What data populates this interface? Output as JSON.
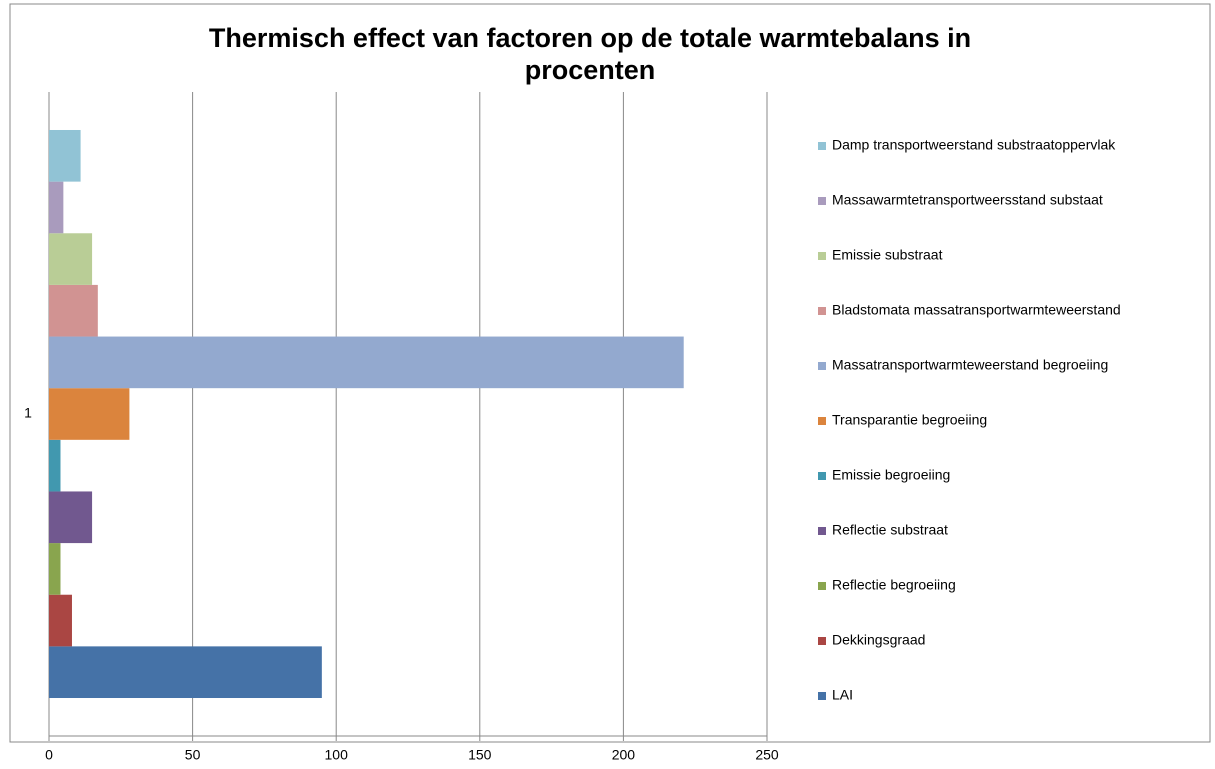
{
  "chart_data": {
    "type": "barh",
    "title": "Thermisch effect van factoren op de totale warmtebalans in procenten",
    "categories": [
      "1"
    ],
    "series": [
      {
        "name": "LAI",
        "color": "#4572a7",
        "values": [
          95
        ]
      },
      {
        "name": "Dekkingsgraad",
        "color": "#aa4643",
        "values": [
          8
        ]
      },
      {
        "name": "Reflectie begroeiing",
        "color": "#89a54e",
        "values": [
          4
        ]
      },
      {
        "name": "Reflectie substraat",
        "color": "#71588f",
        "values": [
          15
        ]
      },
      {
        "name": "Emissie begroeiing",
        "color": "#4198af",
        "values": [
          4
        ]
      },
      {
        "name": "Transparantie begroeiing",
        "color": "#db843d",
        "values": [
          28
        ]
      },
      {
        "name": "Massatransportwarmteweerstand begroeiing",
        "color": "#93a9cf",
        "values": [
          221
        ]
      },
      {
        "name": "Bladstomata massatransportwarmteweerstand",
        "color": "#d19392",
        "values": [
          17
        ]
      },
      {
        "name": "Emissie substraat",
        "color": "#b9cd96",
        "values": [
          15
        ]
      },
      {
        "name": "Massawarmtetransportweersstand substaat",
        "color": "#a99bbd",
        "values": [
          5
        ]
      },
      {
        "name": "Damp transportweerstand substraatoppervlak",
        "color": "#91c3d5",
        "values": [
          11
        ]
      }
    ],
    "xlim": [
      0,
      250
    ],
    "xticks": [
      0,
      50,
      100,
      150,
      200,
      250
    ],
    "grid": true,
    "legend": "right"
  }
}
